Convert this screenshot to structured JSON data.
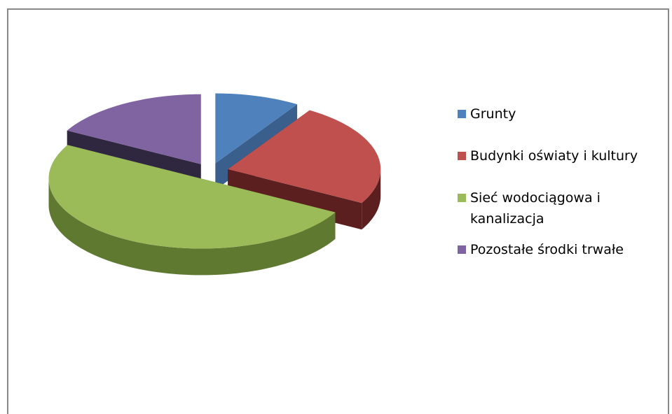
{
  "chart_data": {
    "type": "pie",
    "categories": [
      "Grunty",
      "Budynki oświaty i kultury",
      "Sieć wodociągowa i kanalizacja",
      "Pozostałe środki trwałe"
    ],
    "values": [
      9,
      24,
      50,
      17
    ],
    "colors": [
      "#4f81bd",
      "#c0504d",
      "#9bbb59",
      "#8064a2"
    ],
    "side_colors": [
      "#3a5f8c",
      "#5a1f1e",
      "#5f7a30",
      "#2f2640"
    ],
    "legend": "right"
  }
}
